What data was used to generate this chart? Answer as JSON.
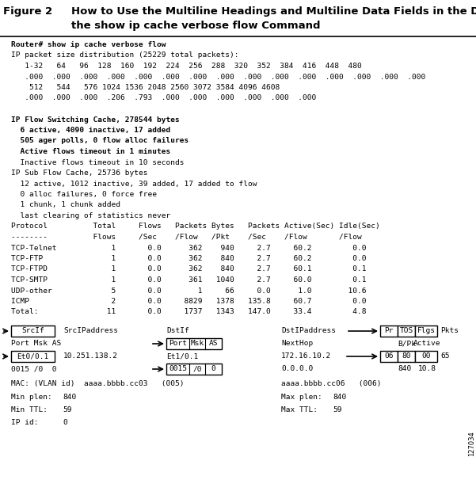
{
  "bg_color": "#ffffff",
  "title_label": "Figure 2",
  "title_line1": "How to Use the Multiline Headings and Multiline Data Fields in the Display Output of",
  "title_line2": "        the show ip cache verbose flow Command",
  "fig_num": "127034",
  "lines": [
    {
      "text": "Router# show ip cache verbose flow",
      "bold": true
    },
    {
      "text": "IP packet size distribution (25229 total packets):",
      "bold": false
    },
    {
      "text": "   1-32   64   96  128  160  192  224  256  288  320  352  384  416  448  480",
      "bold": false
    },
    {
      "text": "   .000  .000  .000  .000  .000  .000  .000  .000  .000  .000  .000  .000  .000  .000  .000",
      "bold": false
    },
    {
      "text": "    512   544   576 1024 1536 2048 2560 3072 3584 4096 4608",
      "bold": false
    },
    {
      "text": "   .000  .000  .000  .206  .793  .000  .000  .000  .000  .000  .000",
      "bold": false
    },
    {
      "text": "",
      "bold": false
    },
    {
      "text": "IP Flow Switching Cache, 278544 bytes",
      "bold": true
    },
    {
      "text": "  6 active, 4090 inactive, 17 added",
      "bold": true
    },
    {
      "text": "  505 ager polls, 0 flow alloc failures",
      "bold": true
    },
    {
      "text": "  Active flows timeout in 1 minutes",
      "bold": true
    },
    {
      "text": "  Inactive flows timeout in 10 seconds",
      "bold": false
    },
    {
      "text": "IP Sub Flow Cache, 25736 bytes",
      "bold": false
    },
    {
      "text": "  12 active, 1012 inactive, 39 added, 17 added to flow",
      "bold": false
    },
    {
      "text": "  0 alloc failures, 0 force free",
      "bold": false
    },
    {
      "text": "  1 chunk, 1 chunk added",
      "bold": false
    },
    {
      "text": "  last clearing of statistics never",
      "bold": false
    },
    {
      "text": "Protocol          Total     Flows   Packets Bytes   Packets Active(Sec) Idle(Sec)",
      "bold": false
    },
    {
      "text": "--------          Flows     /Sec    /Flow   /Pkt    /Sec    /Flow       /Flow",
      "bold": false
    },
    {
      "text": "TCP-Telnet            1       0.0      362    940     2.7     60.2         0.0",
      "bold": false
    },
    {
      "text": "TCP-FTP               1       0.0      362    840     2.7     60.2         0.0",
      "bold": false
    },
    {
      "text": "TCP-FTPD              1       0.0      362    840     2.7     60.1         0.1",
      "bold": false
    },
    {
      "text": "TCP-SMTP              1       0.0      361   1040     2.7     60.0         0.1",
      "bold": false
    },
    {
      "text": "UDP-other             5       0.0        1     66     0.0      1.0        10.6",
      "bold": false
    },
    {
      "text": "ICMP                  2       0.0     8829   1378   135.8     60.7         0.0",
      "bold": false
    },
    {
      "text": "Total:               11       0.0     1737   1343   147.0     33.4         4.8",
      "bold": false
    }
  ]
}
